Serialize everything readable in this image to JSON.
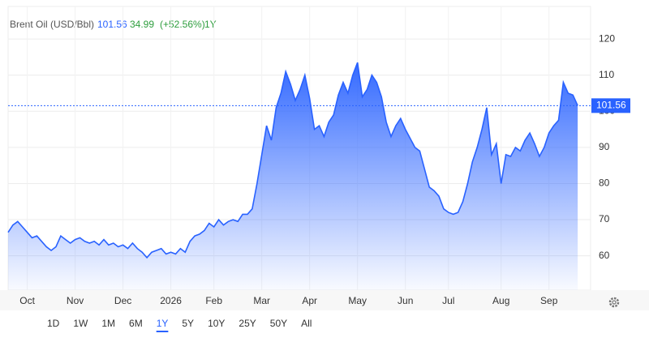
{
  "chart_data": {
    "type": "area",
    "title": "Brent Oil (USD/Bbl)",
    "current_price": 101.56,
    "change": 34.99,
    "change_percent_label": "(+52.56%)",
    "period": "1Y",
    "categories": [
      null,
      null,
      null,
      null,
      "Oct",
      null,
      null,
      null,
      null,
      null,
      null,
      null,
      null,
      null,
      "Nov",
      null,
      null,
      null,
      null,
      null,
      null,
      null,
      null,
      null,
      "Dec",
      null,
      null,
      null,
      null,
      null,
      null,
      null,
      null,
      null,
      "2026",
      null,
      null,
      null,
      null,
      null,
      null,
      null,
      null,
      "Feb",
      null,
      null,
      null,
      null,
      null,
      null,
      null,
      null,
      null,
      "Mar",
      null,
      null,
      null,
      null,
      null,
      null,
      null,
      null,
      null,
      "Apr",
      null,
      null,
      null,
      null,
      null,
      null,
      null,
      null,
      null,
      "May",
      null,
      null,
      null,
      null,
      null,
      null,
      null,
      null,
      null,
      "Jun",
      null,
      null,
      null,
      null,
      null,
      null,
      null,
      null,
      "Jul",
      null,
      null,
      null,
      null,
      null,
      null,
      null,
      null,
      null,
      null,
      "Aug",
      null,
      null,
      null,
      null,
      null,
      null,
      null,
      null,
      null,
      "Sep",
      null,
      null,
      null,
      null,
      null,
      null
    ],
    "values": [
      66.5,
      68.5,
      69.5,
      68,
      66.5,
      65,
      65.5,
      64,
      62.5,
      61.5,
      62.5,
      65.5,
      64.5,
      63.5,
      64.5,
      65,
      64,
      63.5,
      64,
      63,
      64.5,
      63,
      63.5,
      62.5,
      63,
      62,
      63.5,
      62,
      61,
      59.5,
      61,
      61.5,
      62,
      60.5,
      61,
      60.5,
      62,
      61,
      64,
      65.5,
      66,
      67,
      69,
      68,
      70,
      68.5,
      69.5,
      70,
      69.5,
      71.5,
      71.5,
      73,
      80,
      88,
      96,
      92,
      101,
      105,
      111,
      107.5,
      103,
      106,
      110,
      103.5,
      95,
      96,
      93,
      97,
      99,
      104.5,
      108,
      105,
      110,
      113.5,
      104,
      106,
      110,
      108,
      104,
      97,
      93,
      96,
      98,
      95,
      92.5,
      90,
      89,
      84,
      79,
      78,
      76.5,
      73,
      72,
      71.5,
      72,
      75,
      80,
      86,
      90,
      95,
      101,
      88,
      91,
      80,
      88,
      87.5,
      90,
      89,
      92,
      94,
      91,
      87.5,
      90,
      94,
      96,
      97.5,
      108,
      105,
      104.5,
      101.56
    ],
    "color": "#2962ff",
    "ylim": [
      50.5,
      129
    ],
    "yticks": [
      60,
      70,
      80,
      90,
      100,
      110,
      120
    ],
    "grid": true
  },
  "range_buttons": [
    "1D",
    "1W",
    "1M",
    "6M",
    "1Y",
    "5Y",
    "10Y",
    "25Y",
    "50Y",
    "All"
  ]
}
